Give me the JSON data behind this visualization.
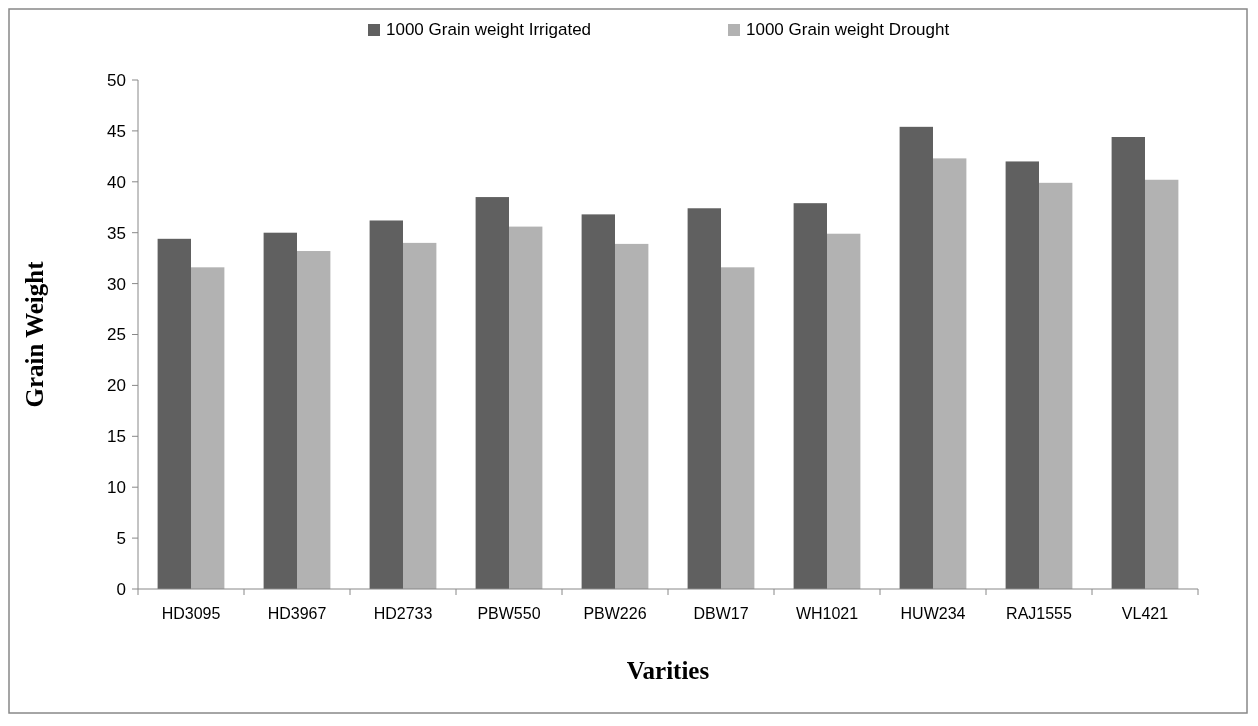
{
  "chart_data": {
    "type": "bar",
    "xlabel": "Varities",
    "ylabel": "Grain Weight",
    "categories": [
      "HD3095",
      "HD3967",
      "HD2733",
      "PBW550",
      "PBW226",
      "DBW17",
      "WH1021",
      "HUW234",
      "RAJ1555",
      "VL421"
    ],
    "series": [
      {
        "name": "1000 Grain weight Irrigated",
        "color": "#606060",
        "values": [
          34.4,
          35.0,
          36.2,
          38.5,
          36.8,
          37.4,
          37.9,
          45.4,
          42.0,
          44.4
        ]
      },
      {
        "name": "1000 Grain weight Drought",
        "color": "#b2b2b2",
        "values": [
          31.6,
          33.2,
          34.0,
          35.6,
          33.9,
          31.6,
          34.9,
          42.3,
          39.9,
          40.2
        ]
      }
    ],
    "ylim": [
      0,
      50
    ],
    "yticks": [
      0,
      5,
      10,
      15,
      20,
      25,
      30,
      35,
      40,
      45,
      50
    ],
    "grid": false,
    "legend": "top"
  }
}
